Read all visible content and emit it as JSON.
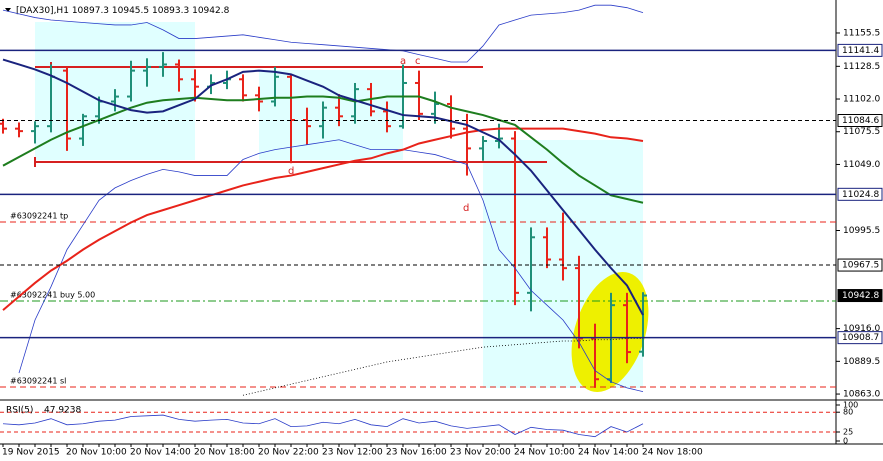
{
  "chart_data": {
    "type": "ohlc",
    "title": "[DAX30],H1",
    "ylim": [
      10859.8,
      11180.6
    ],
    "yticks": [
      11155.5,
      11128.5,
      {
        "value": 11102,
        "label": "11102.0"
      },
      11075.5,
      {
        "value": 11049,
        "label": "11049.0"
      },
      10995.5,
      {
        "value": 10916,
        "label": "10916.0"
      },
      10889.5,
      {
        "value": 10863,
        "label": "10863.0"
      }
    ],
    "grid": false,
    "up_color": "#1f8f78",
    "down_color": "#e8231a",
    "categories": [
      "19 Nov 2015",
      null,
      null,
      null,
      "20 Nov 10:00",
      null,
      null,
      null,
      "20 Nov 14:00",
      null,
      null,
      null,
      "20 Nov 18:00",
      null,
      null,
      null,
      "20 Nov 22:00",
      null,
      null,
      null,
      "23 Nov 12:00",
      null,
      null,
      null,
      "23 Nov 16:00",
      null,
      null,
      null,
      "23 Nov 20:00",
      null,
      null,
      null,
      "24 Nov 10:00",
      null,
      null,
      null,
      "24 Nov 14:00",
      null,
      null,
      null,
      "24 Nov 18:00"
    ],
    "ohlc": {
      "open": [
        11082,
        11078,
        11076,
        11080,
        11125,
        11070,
        11088,
        11100,
        11104,
        11125,
        11128,
        11130,
        11118,
        11112,
        11115,
        11118,
        11105,
        11100,
        11120,
        11085,
        11080,
        11095,
        11088,
        11110,
        11092,
        11080,
        11115,
        11090,
        11098,
        11078,
        11062,
        11068,
        11070,
        10945,
        10990,
        10972,
        10965,
        10908,
        10875,
        10935,
        10897.3
      ],
      "high": [
        11086,
        11083,
        11084,
        11130,
        11128,
        11090,
        11104,
        11110,
        11133,
        11135,
        11140,
        11134,
        11126,
        11122,
        11125,
        11122,
        11112,
        11128,
        11122,
        11095,
        11100,
        11106,
        11115,
        11115,
        11100,
        11130,
        11125,
        11108,
        11105,
        11090,
        11072,
        11082,
        11076,
        10998,
        10998,
        11010,
        10975,
        10920,
        10945,
        10945,
        10945.5
      ],
      "low": [
        11074,
        11071,
        11066,
        11075,
        11060,
        11064,
        11082,
        11092,
        11100,
        11112,
        11120,
        11108,
        11100,
        11106,
        11110,
        11100,
        11092,
        11096,
        11050,
        11065,
        11070,
        11080,
        11082,
        11088,
        11075,
        11078,
        11085,
        11082,
        11070,
        11040,
        11052,
        11062,
        10935,
        10930,
        10965,
        10955,
        10900,
        10868,
        10872,
        10888,
        10893.3
      ],
      "close": [
        11078,
        11076,
        11080,
        11120,
        11070,
        11088,
        11100,
        11104,
        11125,
        11128,
        11130,
        11118,
        11112,
        11115,
        11118,
        11105,
        11100,
        11120,
        11085,
        11080,
        11095,
        11088,
        11110,
        11092,
        11080,
        11115,
        11090,
        11098,
        11078,
        11062,
        11068,
        11070,
        10945,
        10990,
        10972,
        10965,
        10908,
        10875,
        10935,
        10897,
        10942.8
      ]
    },
    "series": [
      {
        "color": "#2a3cc8",
        "width": 0.8,
        "values": [
          11174,
          11171,
          11168,
          11166,
          11165,
          11164,
          11163,
          11162,
          11162,
          11164,
          11158,
          11151,
          11151,
          11152,
          11153,
          11154,
          11152,
          11150,
          11148,
          11147,
          11146,
          11145,
          11144,
          11143,
          11142,
          11141,
          11138,
          11135,
          11132,
          11132,
          11145,
          11162,
          11166,
          11170,
          11171,
          11172,
          11174,
          11178,
          11178,
          11176,
          11172
        ]
      },
      {
        "color": "#2a3cc8",
        "width": 0.8,
        "values": [
          null,
          10880,
          10923,
          10950,
          10980,
          11000,
          11020,
          11030,
          11036,
          11041,
          11045,
          11043,
          11040,
          11040,
          11040,
          11053,
          11058,
          11061,
          11063,
          11065,
          11067,
          11069,
          11065,
          11061,
          11061,
          11061,
          11059,
          11057,
          11053,
          11049,
          11020,
          10980,
          10965,
          10947,
          10935,
          10923,
          10905,
          10882,
          10873,
          10868,
          10865
        ]
      },
      {
        "color": "#000000",
        "width": 0.8,
        "dash": "1 2",
        "values": [
          null,
          null,
          null,
          null,
          null,
          null,
          null,
          null,
          null,
          null,
          null,
          null,
          null,
          null,
          null,
          10862,
          10865,
          10868,
          10871,
          10874,
          10877,
          10880,
          10883,
          10886,
          10889,
          10891,
          10893,
          10895,
          10897,
          10899,
          10901,
          10902,
          10903,
          10904,
          10905,
          10906,
          10906,
          10907,
          10907,
          10908,
          10908
        ]
      },
      {
        "color": "#e8231a",
        "width": 2,
        "values": [
          10931,
          10942,
          10953,
          10963,
          10971,
          10980,
          10988,
          10995,
          11002,
          11008,
          11012,
          11016,
          11020,
          11024,
          11028,
          11032,
          11035,
          11038,
          11040,
          11043,
          11046,
          11049,
          11052,
          11054,
          11058,
          11061,
          11066,
          11069,
          11072,
          11075,
          11077,
          11078,
          11078,
          11078,
          11078,
          11078,
          11076,
          11074,
          11071,
          11070,
          11068
        ]
      },
      {
        "color": "#1e7d1e",
        "width": 2,
        "values": [
          11048,
          11055,
          11062,
          11069,
          11075,
          11080,
          11085,
          11090,
          11095,
          11099,
          11101,
          11102,
          11103,
          11102,
          11101,
          11101,
          11102,
          11103,
          11103,
          11104,
          11104,
          11103,
          11100,
          11102,
          11104,
          11104,
          11104,
          11100,
          11095,
          11092,
          11089,
          11085,
          11081,
          11071,
          11061,
          11050,
          11040,
          11032,
          11024,
          11021,
          11018
        ]
      },
      {
        "color": "#1a237e",
        "width": 2,
        "values": [
          11134,
          11130,
          11126,
          11121,
          11115,
          11108,
          11101,
          11097,
          11093,
          11091,
          11092,
          11097,
          11102,
          11113,
          11118,
          11124,
          11125,
          11124,
          11122,
          11117,
          11112,
          11105,
          11101,
          11097,
          11093,
          11089,
          11088,
          11087,
          11084,
          11081,
          11075,
          11069,
          11057,
          11044,
          11028,
          11012,
          10996,
          10980,
          10965,
          10951,
          10927
        ]
      }
    ],
    "price_lines": [
      {
        "value": 11141.4,
        "color": "#1a237e",
        "style": "solid"
      },
      {
        "value": 11084.6,
        "color": "#000000",
        "style": "dashed"
      },
      {
        "value": 11024.8,
        "color": "#1a237e",
        "style": "solid"
      },
      {
        "value": 10967.5,
        "color": "#000000",
        "style": "dashed"
      },
      {
        "value": 10942.8,
        "color": "#000000",
        "style": "none",
        "filled": true
      },
      {
        "value": 10908.7,
        "color": "#1a237e",
        "style": "solid"
      }
    ],
    "orders": [
      {
        "label": "#63092241 tp",
        "value": 11002.4,
        "color": "#e8231a",
        "dash": "6 4"
      },
      {
        "label": "#63092241 buy 5.00",
        "value": 10938.4,
        "color": "#1e9a1e",
        "dash": "8 3 2 3"
      },
      {
        "label": "#63092241 sl",
        "value": 10868.7,
        "color": "#e8231a",
        "dash": "6 4"
      }
    ],
    "annotations": [
      "a",
      "c",
      "d",
      "d"
    ],
    "rsi": {
      "label": "RSI(5)",
      "color": "#2a3cc8",
      "ylim": [
        0,
        100
      ],
      "yticks": [
        100,
        80,
        25,
        0
      ],
      "levels": [
        80,
        25
      ],
      "values": [
        48,
        45,
        50,
        62,
        45,
        48,
        55,
        58,
        68,
        70,
        72,
        60,
        55,
        58,
        60,
        50,
        48,
        62,
        40,
        42,
        52,
        48,
        60,
        45,
        40,
        62,
        50,
        55,
        42,
        35,
        40,
        45,
        18,
        38,
        32,
        30,
        18,
        12,
        40,
        25,
        47.9238
      ]
    }
  }
}
